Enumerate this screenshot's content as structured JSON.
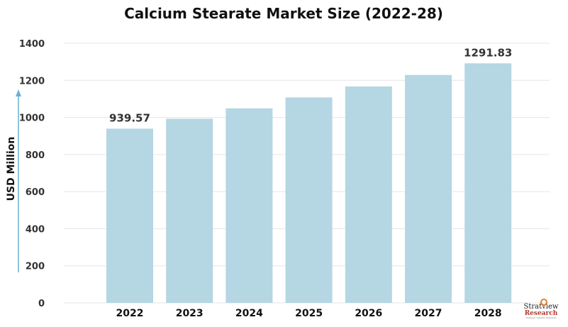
{
  "chart_data": {
    "type": "bar",
    "title": "Calcium Stearate Market Size (2022-28)",
    "xlabel": "",
    "ylabel": "USD Million",
    "categories": [
      "2022",
      "2023",
      "2024",
      "2025",
      "2026",
      "2027",
      "2028"
    ],
    "values": [
      939.57,
      993,
      1049,
      1108,
      1167,
      1229,
      1291.83
    ],
    "data_labels": [
      {
        "category": "2022",
        "text": "939.57"
      },
      {
        "category": "2028",
        "text": "1291.83"
      }
    ],
    "ylim": [
      0,
      1400
    ],
    "yticks": [
      0,
      200,
      400,
      600,
      800,
      1000,
      1200,
      1400
    ],
    "grid": true,
    "legend": "none",
    "colors": {
      "bar": "#b5d6e3",
      "grid": "#e6e6e6",
      "axis_arrow": "#6ab0d4"
    }
  },
  "branding": {
    "logo_line1": "Stratview",
    "logo_line2": "Research",
    "logo_tagline": "Strategic Insights Delivered"
  }
}
